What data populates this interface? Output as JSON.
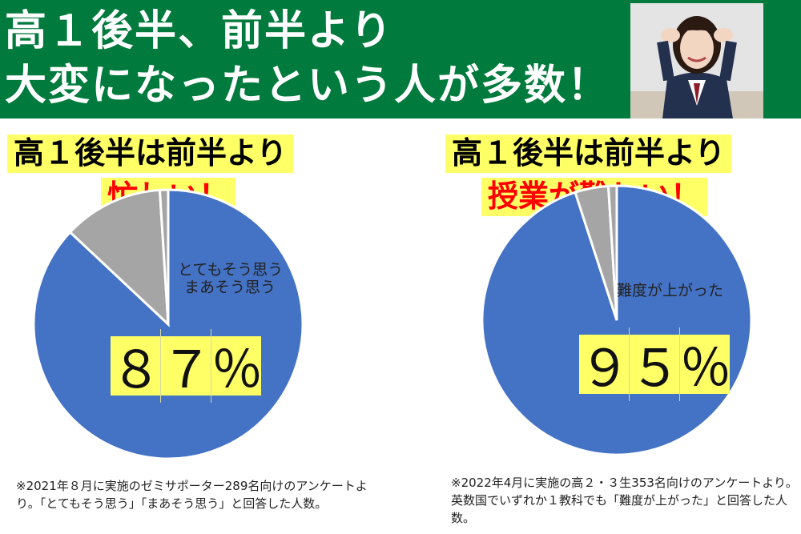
{
  "banner": {
    "line1": "高１後半、前半より",
    "line2": "大変になったという人が多数！",
    "background": "#007A3D"
  },
  "photo": {
    "icon": "student-photo"
  },
  "left": {
    "label_line1": "高１後半は前半より",
    "label_line2": "忙しい！",
    "slice_label_line1": "とてもそう思う",
    "slice_label_line2": "まあそう思う",
    "percent_chars": [
      "８",
      "７",
      "％"
    ],
    "note": "※2021年８月に実施のゼミサポーター289名向けのアンケートより。「とてもそう思う」「まあそう思う」と回答した人数。"
  },
  "right": {
    "label_line1": "高１後半は前半より",
    "label_line2": "授業が難しい！",
    "slice_label": "難度が上がった",
    "percent_chars": [
      "９",
      "５",
      "％"
    ],
    "note": "※2022年4月に実施の高２・３生353名向けのアンケートより。英数国でいずれか１教科でも「難度が上がった」と回答した人数。"
  },
  "colors": {
    "blue": "#4472C4",
    "gray": "#A5A5A5",
    "highlight": "#FFFF66",
    "red": "#FF0000"
  },
  "chart_data": [
    {
      "type": "pie",
      "title": "高１後半は前半より忙しい！",
      "slices": [
        {
          "label": "とてもそう思う・まあそう思う",
          "value": 87,
          "color": "#4472C4"
        },
        {
          "label": "",
          "value": 12,
          "color": "#A5A5A5"
        },
        {
          "label": "",
          "value": 1,
          "color": "#A5A5A5"
        }
      ]
    },
    {
      "type": "pie",
      "title": "高１後半は前半より授業が難しい！",
      "slices": [
        {
          "label": "難度が上がった",
          "value": 95,
          "color": "#4472C4"
        },
        {
          "label": "",
          "value": 4,
          "color": "#A5A5A5"
        },
        {
          "label": "",
          "value": 1,
          "color": "#A5A5A5"
        }
      ]
    }
  ]
}
